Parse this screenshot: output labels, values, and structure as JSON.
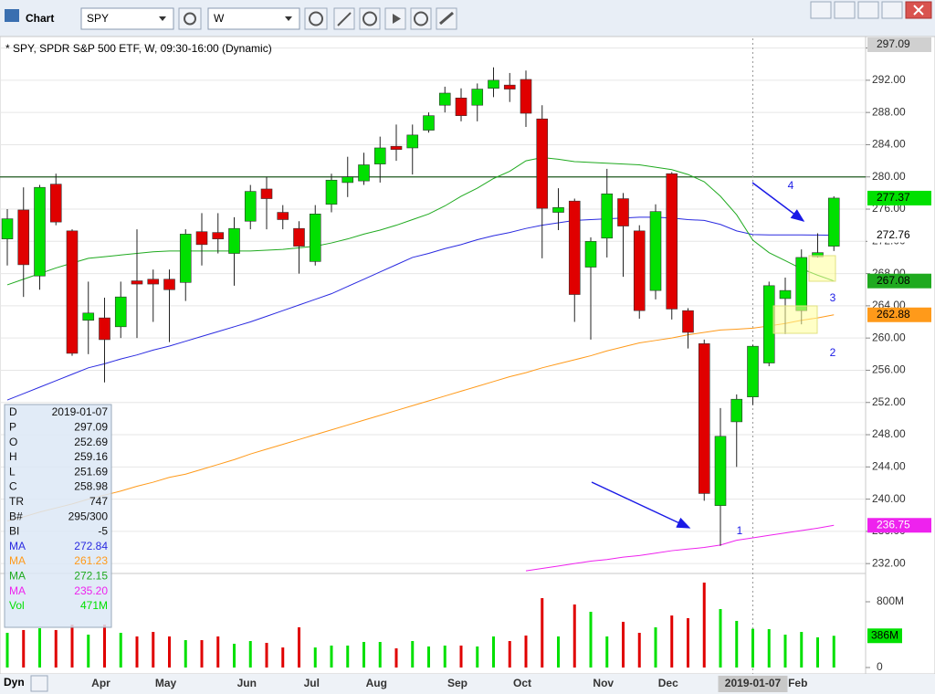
{
  "toolbar": {
    "title": "Chart",
    "symbol": "SPY",
    "interval": "W"
  },
  "chart_data": {
    "type": "candlestick",
    "title": "* SPY, SPDR S&P 500 ETF, W, 09:30-16:00 (Dynamic)",
    "categories": [
      null,
      null,
      null,
      null,
      null,
      null,
      "Apr",
      null,
      null,
      null,
      "May",
      null,
      null,
      null,
      null,
      "Jun",
      null,
      null,
      null,
      "Jul",
      null,
      null,
      null,
      "Aug",
      null,
      null,
      null,
      null,
      "Sep",
      null,
      null,
      null,
      "Oct",
      null,
      null,
      null,
      null,
      "Nov",
      null,
      null,
      null,
      "Dec",
      null,
      null,
      null,
      null,
      "2019-01-07",
      null,
      null,
      "Feb",
      null,
      null
    ],
    "open": [
      272.3,
      275.9,
      267.7,
      279.1,
      273.3,
      262.2,
      262.5,
      261.4,
      267.1,
      267.3,
      267.3,
      266.9,
      273.2,
      273.1,
      270.5,
      274.5,
      278.5,
      275.6,
      273.6,
      269.5,
      276.6,
      279.3,
      279.5,
      281.6,
      283.8,
      283.6,
      285.8,
      288.9,
      289.8,
      288.9,
      291.0,
      291.4,
      292.1,
      287.2,
      275.6,
      277.0,
      268.8,
      272.4,
      277.3,
      273.3,
      265.9,
      280.4,
      263.4,
      259.3,
      239.2,
      249.6,
      252.69,
      256.9,
      264.9,
      263.4,
      270.1,
      271.4
    ],
    "high": [
      276,
      278.7,
      279,
      280.4,
      273.5,
      267,
      265,
      267,
      273.5,
      268.5,
      268.5,
      273.5,
      275.5,
      275.5,
      275,
      279,
      280,
      276.5,
      274.5,
      276.5,
      280.4,
      282.5,
      283,
      285,
      286.5,
      286.5,
      288,
      291.2,
      291,
      291.6,
      293.6,
      292.9,
      293.2,
      288.9,
      278.6,
      277.3,
      272.5,
      281,
      278,
      274,
      276.6,
      280.6,
      263.7,
      259.8,
      251.3,
      253,
      259.16,
      267,
      267.5,
      271,
      273,
      277.6
    ],
    "low": [
      269,
      265.1,
      266,
      274,
      257.8,
      258,
      254.5,
      260,
      260,
      262,
      259.5,
      264.6,
      269,
      270.5,
      266.5,
      273.5,
      273.5,
      273.5,
      268,
      269,
      275.6,
      277.5,
      279,
      279.3,
      282,
      280.3,
      285.5,
      288,
      286.9,
      286.9,
      289.9,
      289.3,
      286.2,
      269.9,
      273.4,
      262,
      259.8,
      270,
      267.6,
      262.4,
      264.8,
      262.3,
      258.7,
      239.8,
      234.2,
      244,
      251.69,
      256.5,
      260.5,
      261.7,
      270,
      270.8
    ],
    "close": [
      274.8,
      269.1,
      278.7,
      274.4,
      258.1,
      263.1,
      259.8,
      265.1,
      266.7,
      266.7,
      266.0,
      272.9,
      271.6,
      272.3,
      273.6,
      278.2,
      277.3,
      274.7,
      271.4,
      275.4,
      279.6,
      280.0,
      281.5,
      283.6,
      283.4,
      285.2,
      287.6,
      290.4,
      287.6,
      290.9,
      292.0,
      290.9,
      287.9,
      276.1,
      276.2,
      265.4,
      272.0,
      277.9,
      273.9,
      263.4,
      275.7,
      263.6,
      260.7,
      240.7,
      247.8,
      252.4,
      258.98,
      266.5,
      265.9,
      270.0,
      270.6,
      277.37
    ],
    "up_color": "#00e000",
    "down_color": "#e00000",
    "moving_averages": [
      {
        "color": "#2a2ae0",
        "values": [
          252.3,
          253.1,
          253.9,
          254.7,
          255.5,
          256.3,
          256.8,
          257.4,
          257.9,
          258.5,
          259.0,
          259.6,
          260.2,
          260.8,
          261.4,
          262.0,
          262.7,
          263.4,
          264.1,
          264.8,
          265.5,
          266.4,
          267.3,
          268.2,
          269.1,
          270.0,
          270.5,
          271.1,
          271.6,
          272.2,
          272.7,
          273.1,
          273.6,
          274.0,
          274.3,
          274.6,
          274.7,
          274.8,
          274.9,
          275.0,
          275.0,
          274.9,
          274.7,
          274.6,
          274.1,
          273.3,
          272.84,
          272.8,
          272.8,
          272.8,
          272.78,
          272.76
        ]
      },
      {
        "color": "#ff9a1a",
        "values": [
          237.3,
          237.8,
          238.4,
          238.9,
          239.4,
          240.0,
          240.5,
          241.0,
          241.6,
          242.1,
          242.7,
          243.1,
          243.7,
          244.3,
          244.9,
          245.6,
          246.2,
          246.8,
          247.4,
          248.0,
          248.6,
          249.2,
          249.8,
          250.4,
          251.0,
          251.6,
          252.2,
          252.8,
          253.4,
          254.0,
          254.6,
          255.2,
          255.7,
          256.3,
          256.8,
          257.3,
          257.8,
          258.4,
          258.9,
          259.4,
          259.7,
          260.0,
          260.4,
          260.7,
          261.0,
          261.1,
          261.23,
          261.5,
          261.8,
          262.2,
          262.5,
          262.88
        ]
      },
      {
        "color": "#1faa1f",
        "values": [
          266.6,
          267.3,
          268.0,
          268.7,
          269.3,
          269.9,
          270.1,
          270.3,
          270.5,
          270.7,
          270.8,
          270.8,
          270.8,
          270.8,
          270.8,
          270.8,
          270.9,
          271.0,
          271.2,
          271.4,
          271.8,
          272.3,
          272.9,
          273.4,
          274.0,
          274.7,
          275.4,
          276.4,
          277.6,
          278.6,
          279.8,
          280.7,
          282.0,
          282.4,
          282.2,
          281.9,
          281.8,
          281.7,
          281.6,
          281.5,
          281.2,
          280.9,
          280.3,
          279.4,
          277.6,
          275.3,
          272.15,
          270.6,
          269.6,
          268.6,
          267.8,
          267.08
        ]
      },
      {
        "color": "#ee22ee",
        "values": [
          null,
          null,
          null,
          null,
          null,
          null,
          null,
          null,
          null,
          null,
          null,
          null,
          null,
          null,
          null,
          null,
          null,
          null,
          null,
          null,
          null,
          null,
          null,
          null,
          null,
          null,
          null,
          null,
          null,
          null,
          null,
          null,
          231.1,
          231.4,
          231.7,
          232.0,
          232.3,
          232.5,
          232.8,
          233.0,
          233.3,
          233.6,
          233.8,
          234.0,
          234.3,
          234.9,
          235.2,
          235.5,
          235.8,
          236.1,
          236.4,
          236.75
        ]
      }
    ],
    "volume": {
      "values": [
        422,
        456,
        478,
        456,
        522,
        400,
        522,
        422,
        378,
        433,
        378,
        333,
        333,
        378,
        289,
        322,
        300,
        244,
        489,
        244,
        267,
        267,
        311,
        311,
        233,
        322,
        256,
        267,
        267,
        256,
        378,
        322,
        389,
        844,
        378,
        767,
        678,
        378,
        556,
        422,
        489,
        633,
        600,
        1033,
        711,
        567,
        471,
        467,
        400,
        433,
        367,
        386
      ],
      "value_labels": [
        null,
        null,
        null,
        null,
        null,
        null,
        null,
        null,
        null,
        null,
        null,
        null,
        null,
        null,
        null,
        null,
        null,
        null,
        null,
        null,
        null,
        null,
        null,
        null,
        null,
        null,
        null,
        null,
        null,
        null,
        null,
        null,
        null,
        null,
        null,
        null,
        null,
        null,
        null,
        null,
        null,
        null,
        null,
        null,
        null,
        null,
        null,
        null,
        null,
        null,
        null,
        "386M"
      ],
      "y2lim": [
        0,
        1122
      ],
      "y2ticks": [
        {
          "value": 800,
          "label": "800M"
        },
        0
      ]
    },
    "ylim": [
      231.0,
      297.2
    ],
    "yticks": [
      {
        "value": 232,
        "label": "232.00"
      },
      {
        "value": 236,
        "label": "236.00"
      },
      {
        "value": 240,
        "label": "240.00"
      },
      {
        "value": 244,
        "label": "244.00"
      },
      {
        "value": 248,
        "label": "248.00"
      },
      {
        "value": 252,
        "label": "252.00"
      },
      {
        "value": 256,
        "label": "256.00"
      },
      {
        "value": 260,
        "label": "260.00"
      },
      {
        "value": 264,
        "label": "264.00"
      },
      {
        "value": 268,
        "label": "268.00"
      },
      {
        "value": 272,
        "label": "272.00"
      },
      {
        "value": 276,
        "label": "276.00"
      },
      {
        "value": 280,
        "label": "280.00"
      },
      {
        "value": 284,
        "label": "284.00"
      },
      {
        "value": 288,
        "label": "288.00"
      },
      {
        "value": 292,
        "label": "292.00"
      },
      {
        "value": 296,
        "label": "296.00"
      }
    ],
    "grid": true,
    "hline": {
      "value": 280,
      "color": "#1f5a1f"
    },
    "annotations": [
      "1",
      "2",
      "3",
      "4"
    ]
  },
  "data_window": {
    "rows": [
      [
        "D",
        "2019-01-07"
      ],
      [
        "P",
        "297.09"
      ],
      [
        "O",
        "252.69"
      ],
      [
        "H",
        "259.16"
      ],
      [
        "L",
        "251.69"
      ],
      [
        "C",
        "258.98"
      ],
      [
        "TR",
        "747"
      ],
      [
        "B#",
        "295/300"
      ],
      [
        "BI",
        "-5"
      ],
      [
        "MA",
        "272.84"
      ],
      [
        "MA",
        "261.23"
      ],
      [
        "MA",
        "272.15"
      ],
      [
        "MA",
        "235.20"
      ],
      [
        "Vol",
        "471M"
      ]
    ]
  },
  "footer": {
    "mode": "Dyn"
  }
}
